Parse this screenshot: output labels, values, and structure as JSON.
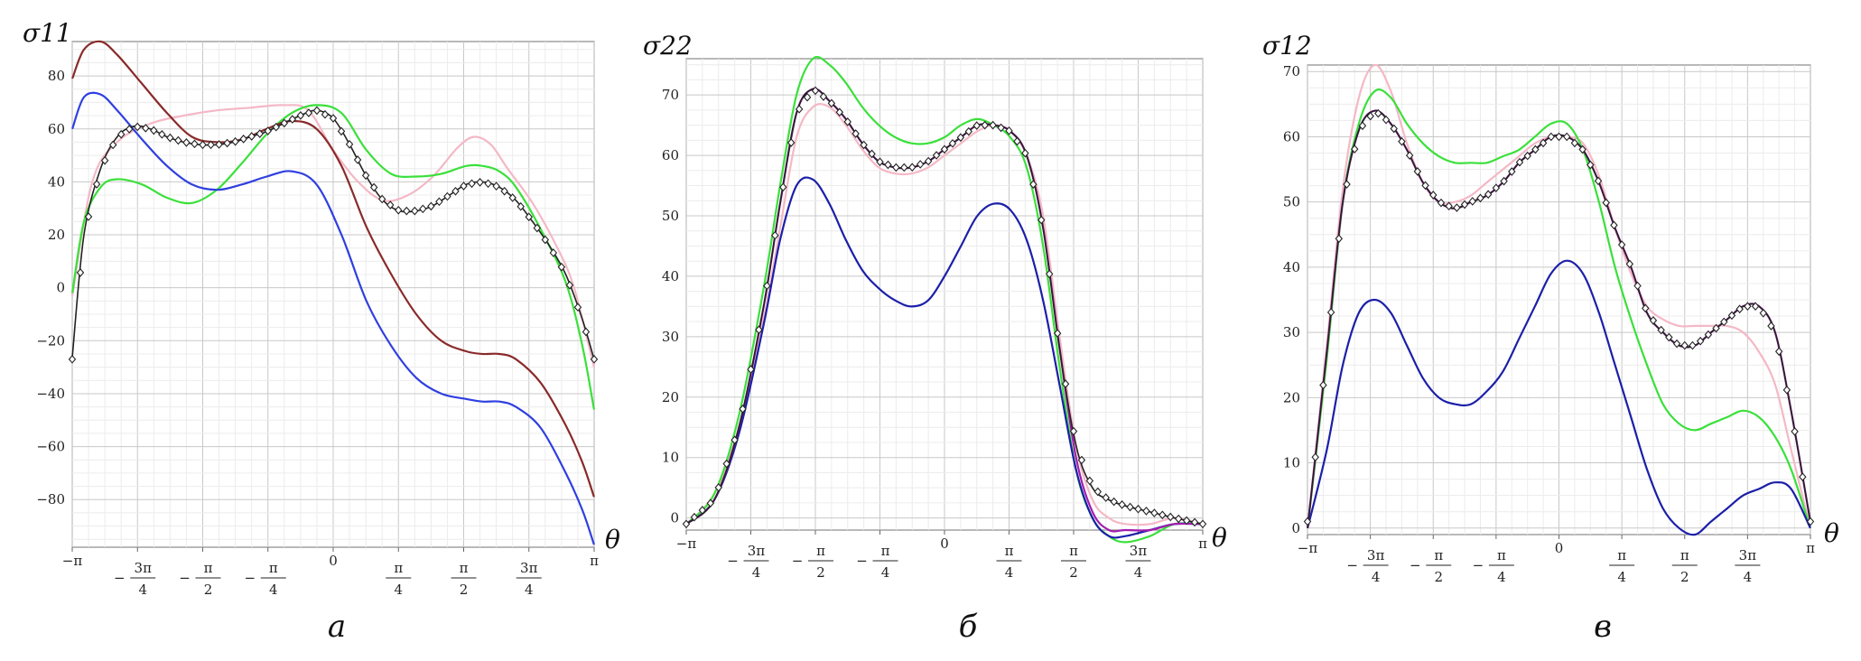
{
  "colors": {
    "black": "#222222",
    "pink": "#f4b8c6",
    "green": "#3ae03a",
    "blue": "#2f3fe0",
    "darkblue": "#1b1fa8",
    "maroon": "#8a2a2a",
    "purple": "#a21caf"
  },
  "chart_data": [
    {
      "type": "line",
      "panel": "а",
      "ylabel": "σ11",
      "xlabel": "θ",
      "xlim": [
        -3.14159,
        3.14159
      ],
      "ylim": [
        -98,
        93
      ],
      "grid": true,
      "x_ticks": [
        "−π",
        "−3π/4",
        "−π/2",
        "−π/4",
        "0",
        "π/4",
        "π/2",
        "3π/4",
        "π"
      ],
      "y_ticks": [
        -80,
        -60,
        -40,
        -20,
        0,
        20,
        40,
        60,
        80
      ],
      "markers_series": "black",
      "series": [
        {
          "color": "pink",
          "x": [
            -3.14,
            -2.9,
            -2.6,
            -2.2,
            -1.8,
            -1.4,
            -1.0,
            -0.6,
            -0.3,
            0.0,
            0.3,
            0.6,
            0.9,
            1.2,
            1.5,
            1.7,
            1.9,
            2.1,
            2.4,
            2.7,
            2.9,
            3.14
          ],
          "y": [
            -3,
            40,
            55,
            62,
            65,
            67,
            68,
            69,
            67,
            52,
            40,
            33,
            35,
            42,
            53,
            57,
            54,
            45,
            32,
            15,
            0,
            -30
          ]
        },
        {
          "color": "green",
          "x": [
            -3.14,
            -3.0,
            -2.8,
            -2.6,
            -2.3,
            -2.0,
            -1.7,
            -1.4,
            -1.1,
            -0.8,
            -0.5,
            -0.2,
            0.1,
            0.4,
            0.7,
            1.0,
            1.3,
            1.6,
            1.8,
            2.0,
            2.2,
            2.5,
            2.8,
            3.0,
            3.14
          ],
          "y": [
            -2,
            25,
            38,
            41,
            39,
            34,
            32,
            37,
            47,
            58,
            66,
            69,
            66,
            52,
            43,
            42,
            43,
            46,
            46,
            44,
            38,
            22,
            2,
            -22,
            -46
          ]
        },
        {
          "color": "blue",
          "x": [
            -3.14,
            -3.0,
            -2.8,
            -2.6,
            -2.3,
            -2.0,
            -1.7,
            -1.4,
            -1.1,
            -0.8,
            -0.5,
            -0.2,
            0.1,
            0.4,
            0.7,
            1.0,
            1.3,
            1.6,
            1.8,
            2.0,
            2.2,
            2.5,
            2.8,
            3.0,
            3.14
          ],
          "y": [
            60,
            72,
            73,
            67,
            56,
            46,
            39,
            37,
            39,
            42,
            44,
            39,
            20,
            -5,
            -22,
            -34,
            -40,
            -42,
            -43,
            -43,
            -45,
            -53,
            -70,
            -84,
            -97
          ]
        },
        {
          "color": "maroon",
          "x": [
            -3.14,
            -3.0,
            -2.8,
            -2.6,
            -2.3,
            -2.0,
            -1.7,
            -1.4,
            -1.1,
            -0.8,
            -0.5,
            -0.2,
            0.1,
            0.4,
            0.7,
            1.0,
            1.3,
            1.6,
            1.8,
            2.0,
            2.2,
            2.5,
            2.8,
            3.0,
            3.14
          ],
          "y": [
            79,
            90,
            93,
            88,
            77,
            66,
            57,
            55,
            56,
            60,
            63,
            60,
            46,
            23,
            5,
            -10,
            -20,
            -24,
            -25,
            -25,
            -27,
            -36,
            -52,
            -66,
            -79
          ]
        },
        {
          "color": "black",
          "x": [
            -3.14,
            -3.0,
            -2.8,
            -2.6,
            -2.4,
            -2.2,
            -2.0,
            -1.8,
            -1.6,
            -1.4,
            -1.2,
            -1.0,
            -0.8,
            -0.6,
            -0.4,
            -0.2,
            0.0,
            0.2,
            0.4,
            0.6,
            0.8,
            1.0,
            1.2,
            1.4,
            1.6,
            1.8,
            2.0,
            2.2,
            2.4,
            2.6,
            2.8,
            3.0,
            3.14
          ],
          "y": [
            -26,
            20,
            45,
            57,
            61,
            60,
            57,
            55,
            54,
            54,
            55,
            57,
            59,
            62,
            65,
            67,
            64,
            54,
            42,
            33,
            29,
            29,
            31,
            35,
            39,
            40,
            38,
            33,
            25,
            16,
            5,
            -12,
            -27
          ]
        }
      ]
    },
    {
      "type": "line",
      "panel": "б",
      "ylabel": "σ22",
      "xlabel": "θ",
      "xlim": [
        -3.14159,
        3.14159
      ],
      "ylim": [
        -2,
        76
      ],
      "grid": true,
      "x_ticks": [
        "−π",
        "−3π/4",
        "−π/2",
        "−π/4",
        "0",
        "π/4",
        "π/2",
        "3π/4",
        "π"
      ],
      "y_ticks": [
        0,
        10,
        20,
        30,
        40,
        50,
        60,
        70
      ],
      "markers_series": "black",
      "series": [
        {
          "color": "pink",
          "x": [
            -3.14,
            -2.8,
            -2.5,
            -2.2,
            -2.0,
            -1.8,
            -1.6,
            -1.4,
            -1.2,
            -1.0,
            -0.8,
            -0.6,
            -0.4,
            -0.2,
            0.0,
            0.2,
            0.4,
            0.6,
            0.8,
            1.0,
            1.2,
            1.4,
            1.6,
            1.8,
            2.0,
            2.2,
            2.5,
            2.8,
            3.14
          ],
          "y": [
            -1,
            4,
            15,
            33,
            48,
            63,
            68,
            68,
            65,
            61,
            58,
            57,
            57,
            58,
            60,
            62,
            64,
            65,
            64,
            60,
            50,
            30,
            12,
            3,
            0,
            -1,
            -1,
            0,
            -1
          ]
        },
        {
          "color": "green",
          "x": [
            -3.14,
            -2.8,
            -2.5,
            -2.2,
            -2.0,
            -1.8,
            -1.6,
            -1.4,
            -1.2,
            -1.0,
            -0.8,
            -0.6,
            -0.4,
            -0.2,
            0.0,
            0.2,
            0.4,
            0.6,
            0.8,
            1.0,
            1.2,
            1.4,
            1.6,
            1.8,
            2.0,
            2.2,
            2.5,
            2.8,
            3.14
          ],
          "y": [
            -1,
            4,
            17,
            38,
            55,
            70,
            76,
            75,
            72,
            68,
            65,
            63,
            62,
            62,
            63,
            65,
            66,
            65,
            63,
            58,
            45,
            25,
            8,
            0,
            -3,
            -4,
            -3,
            -1,
            -1
          ]
        },
        {
          "color": "darkblue",
          "x": [
            -3.14,
            -2.8,
            -2.5,
            -2.2,
            -2.0,
            -1.8,
            -1.6,
            -1.4,
            -1.2,
            -1.0,
            -0.8,
            -0.6,
            -0.4,
            -0.2,
            0.0,
            0.2,
            0.4,
            0.6,
            0.8,
            1.0,
            1.2,
            1.4,
            1.6,
            1.8,
            2.0,
            2.2,
            2.5,
            2.8,
            3.14
          ],
          "y": [
            -1,
            3,
            14,
            32,
            46,
            55,
            56,
            52,
            46,
            41,
            38,
            36,
            35,
            36,
            40,
            45,
            50,
            52,
            51,
            46,
            36,
            22,
            8,
            0,
            -3,
            -3,
            -2,
            -1,
            -1
          ]
        },
        {
          "color": "purple",
          "x": [
            -3.14,
            -2.8,
            -2.5,
            -2.2,
            -2.0,
            -1.8,
            -1.6,
            -1.4,
            -1.2,
            -1.0,
            -0.8,
            -0.6,
            -0.4,
            -0.2,
            0.0,
            0.2,
            0.4,
            0.6,
            0.8,
            1.0,
            1.2,
            1.4,
            1.6,
            1.8,
            2.0,
            2.2,
            2.5,
            2.8,
            3.14
          ],
          "y": [
            -1,
            3,
            15,
            35,
            52,
            67,
            71,
            69,
            66,
            62,
            59,
            58,
            58,
            59,
            61,
            63,
            65,
            65,
            64,
            60,
            48,
            28,
            10,
            1,
            -2,
            -2,
            -2,
            -1,
            -1
          ]
        },
        {
          "color": "black",
          "x": [
            -3.14,
            -2.8,
            -2.5,
            -2.2,
            -2.0,
            -1.8,
            -1.6,
            -1.4,
            -1.2,
            -1.0,
            -0.8,
            -0.6,
            -0.4,
            -0.2,
            0.0,
            0.2,
            0.4,
            0.6,
            0.8,
            1.0,
            1.2,
            1.4,
            1.6,
            1.8,
            2.0,
            2.2,
            2.5,
            2.8,
            3.14
          ],
          "y": [
            -1,
            3,
            15,
            35,
            52,
            67,
            71,
            69,
            66,
            62,
            59,
            58,
            58,
            59,
            61,
            63,
            65,
            65,
            64,
            60,
            48,
            28,
            12,
            5,
            3,
            2,
            1,
            0,
            -1
          ]
        }
      ]
    },
    {
      "type": "line",
      "panel": "в",
      "ylabel": "σ12",
      "xlabel": "θ",
      "xlim": [
        -3.14159,
        3.14159
      ],
      "ylim": [
        -1,
        71
      ],
      "grid": true,
      "x_ticks": [
        "−π",
        "−3π/4",
        "−π/2",
        "−π/4",
        "0",
        "π/4",
        "π/2",
        "3π/4",
        "π"
      ],
      "y_ticks": [
        0,
        10,
        20,
        30,
        40,
        50,
        60,
        70
      ],
      "markers_series": "black",
      "series": [
        {
          "color": "pink",
          "x": [
            -3.14,
            -2.9,
            -2.7,
            -2.5,
            -2.3,
            -2.1,
            -1.9,
            -1.7,
            -1.5,
            -1.3,
            -1.1,
            -0.9,
            -0.7,
            -0.5,
            -0.3,
            -0.1,
            0.1,
            0.3,
            0.5,
            0.7,
            0.9,
            1.1,
            1.3,
            1.5,
            1.7,
            1.9,
            2.1,
            2.3,
            2.5,
            2.7,
            2.9,
            3.14
          ],
          "y": [
            0,
            28,
            52,
            66,
            71,
            67,
            59,
            53,
            50,
            50,
            51,
            53,
            55,
            57,
            59,
            60,
            60,
            59,
            54,
            46,
            39,
            34,
            32,
            31,
            31,
            31,
            31,
            30,
            27,
            22,
            12,
            0
          ]
        },
        {
          "color": "green",
          "x": [
            -3.14,
            -2.9,
            -2.7,
            -2.5,
            -2.3,
            -2.1,
            -1.9,
            -1.7,
            -1.5,
            -1.3,
            -1.1,
            -0.9,
            -0.7,
            -0.5,
            -0.3,
            -0.1,
            0.1,
            0.3,
            0.5,
            0.7,
            0.9,
            1.1,
            1.3,
            1.5,
            1.7,
            1.9,
            2.1,
            2.3,
            2.5,
            2.7,
            2.9,
            3.14
          ],
          "y": [
            0,
            26,
            50,
            62,
            67,
            66,
            62,
            59,
            57,
            56,
            56,
            56,
            57,
            58,
            60,
            62,
            62,
            58,
            50,
            40,
            32,
            25,
            19,
            16,
            15,
            16,
            17,
            18,
            17,
            14,
            9,
            0
          ]
        },
        {
          "color": "darkblue",
          "x": [
            -3.14,
            -2.9,
            -2.7,
            -2.5,
            -2.3,
            -2.1,
            -1.9,
            -1.7,
            -1.5,
            -1.3,
            -1.1,
            -0.9,
            -0.7,
            -0.5,
            -0.3,
            -0.1,
            0.1,
            0.3,
            0.5,
            0.7,
            0.9,
            1.1,
            1.3,
            1.5,
            1.7,
            1.9,
            2.1,
            2.3,
            2.5,
            2.7,
            2.9,
            3.14
          ],
          "y": [
            0,
            12,
            25,
            33,
            35,
            33,
            28,
            23,
            20,
            19,
            19,
            21,
            24,
            29,
            34,
            39,
            41,
            39,
            33,
            25,
            17,
            9,
            3,
            0,
            -1,
            1,
            3,
            5,
            6,
            7,
            6,
            0
          ]
        },
        {
          "color": "purple",
          "x": [
            -3.14,
            -2.9,
            -2.7,
            -2.5,
            -2.3,
            -2.1,
            -1.9,
            -1.7,
            -1.5,
            -1.3,
            -1.1,
            -0.9,
            -0.7,
            -0.5,
            -0.3,
            -0.1,
            0.1,
            0.3,
            0.5,
            0.7,
            0.9,
            1.1,
            1.3,
            1.5,
            1.7,
            1.9,
            2.1,
            2.3,
            2.5,
            2.7,
            2.9,
            3.14
          ],
          "y": [
            0,
            27,
            50,
            61,
            64,
            62,
            58,
            53,
            50,
            49,
            50,
            51,
            53,
            56,
            58,
            60,
            60,
            58,
            53,
            46,
            40,
            33,
            30,
            28,
            28,
            30,
            32,
            34,
            34,
            30,
            18,
            1
          ]
        },
        {
          "color": "black",
          "x": [
            -3.14,
            -2.9,
            -2.7,
            -2.5,
            -2.3,
            -2.1,
            -1.9,
            -1.7,
            -1.5,
            -1.3,
            -1.1,
            -0.9,
            -0.7,
            -0.5,
            -0.3,
            -0.1,
            0.1,
            0.3,
            0.5,
            0.7,
            0.9,
            1.1,
            1.3,
            1.5,
            1.7,
            1.9,
            2.1,
            2.3,
            2.5,
            2.7,
            2.9,
            3.14
          ],
          "y": [
            0,
            27,
            50,
            61,
            64,
            62,
            58,
            53,
            50,
            49,
            50,
            51,
            53,
            56,
            58,
            60,
            60,
            58,
            53,
            46,
            40,
            33,
            30,
            28,
            28,
            30,
            32,
            34,
            34,
            30,
            18,
            1
          ]
        }
      ]
    }
  ]
}
